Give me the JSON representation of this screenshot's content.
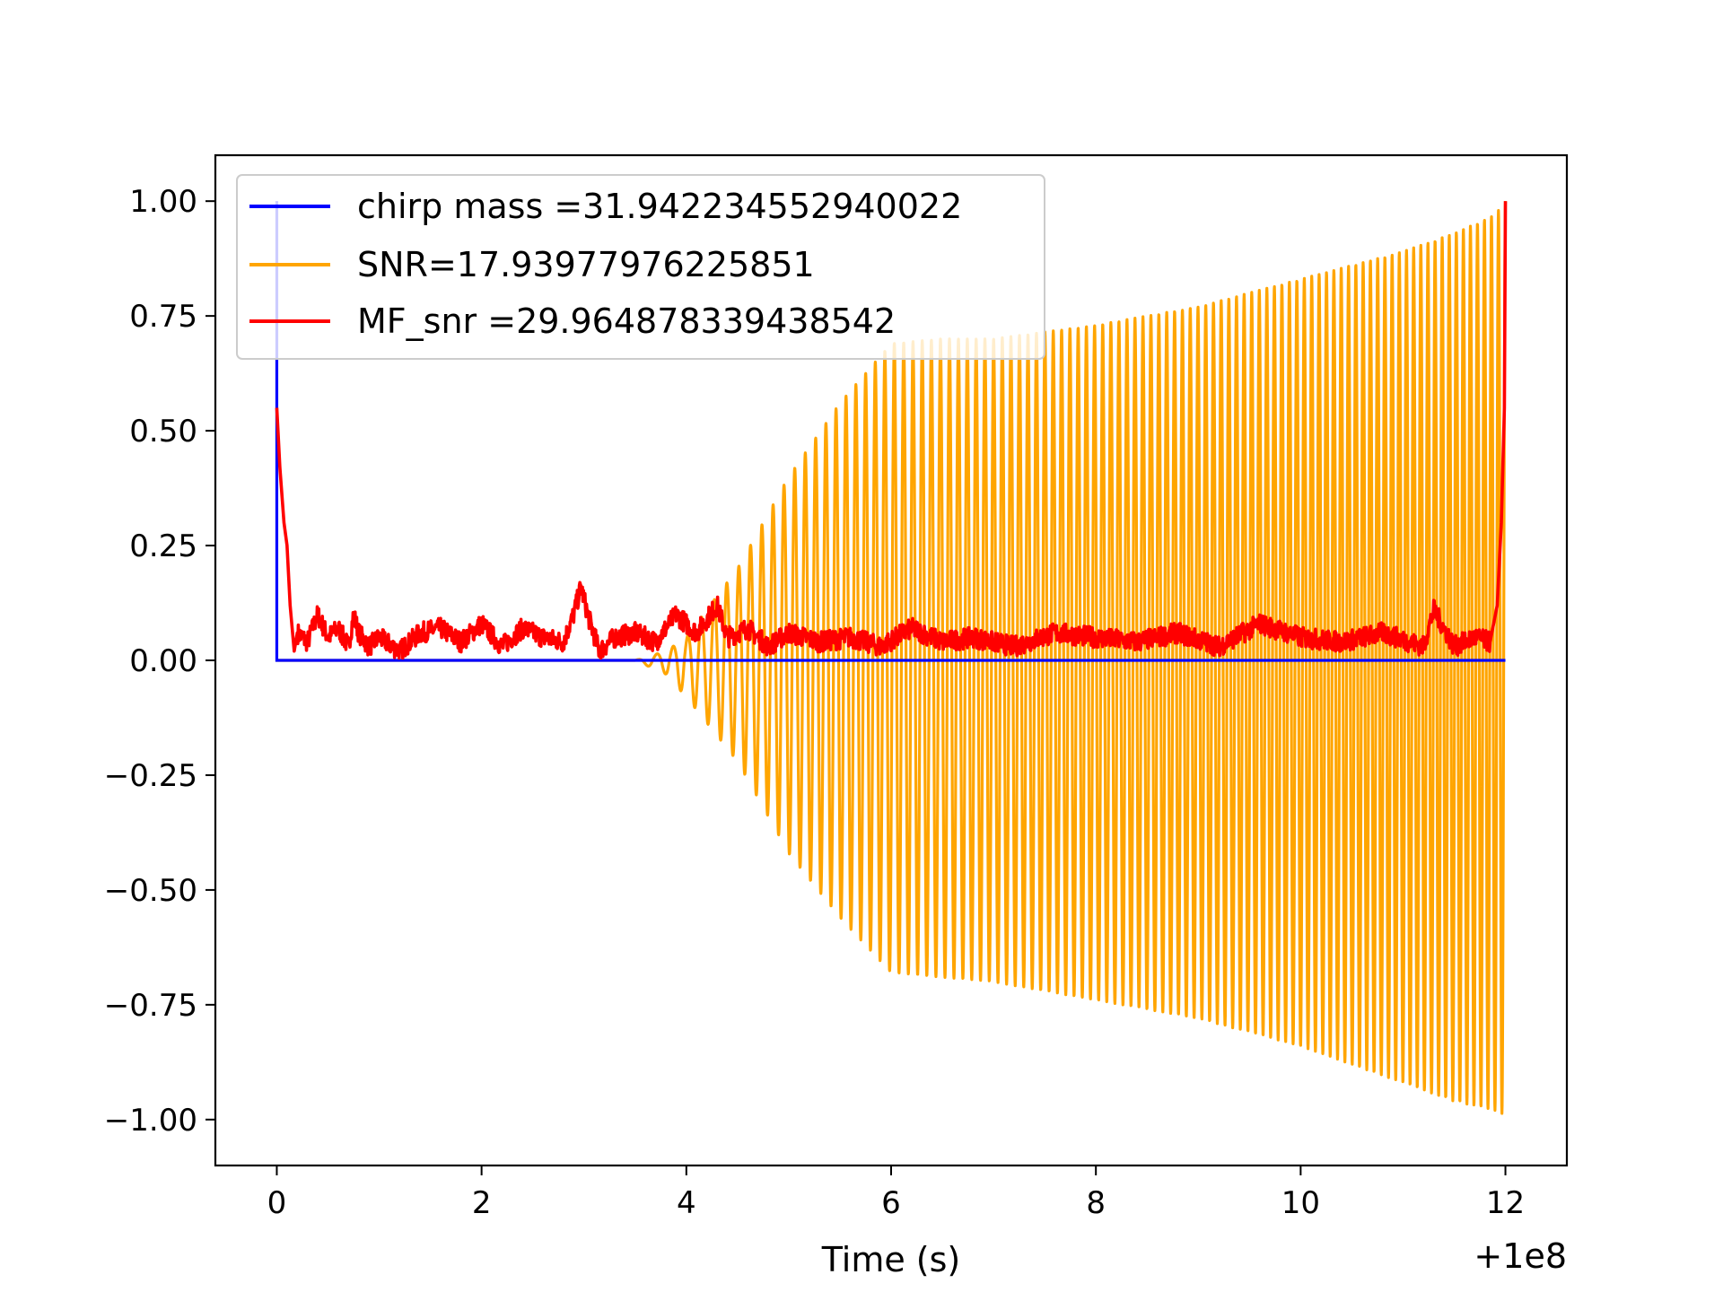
{
  "chart_data": {
    "type": "line",
    "title": "",
    "xlabel": "Time (s)",
    "ylabel": "",
    "x_offset_label": "+1e8",
    "xlim": [
      -0.6,
      12.6
    ],
    "ylim": [
      -1.1,
      1.1
    ],
    "xticks": [
      0,
      2,
      4,
      6,
      8,
      10,
      12
    ],
    "xtick_labels": [
      "0",
      "2",
      "4",
      "6",
      "8",
      "10",
      "12"
    ],
    "yticks": [
      1.0,
      0.75,
      0.5,
      0.25,
      0.0,
      -0.25,
      -0.5,
      -0.75,
      -1.0
    ],
    "ytick_labels": [
      "1.00",
      "0.75",
      "0.50",
      "0.25",
      "0.00",
      "−0.25",
      "−0.50",
      "−0.75",
      "−1.00"
    ],
    "grid": false,
    "legend_position": "top-left",
    "series": [
      {
        "name": "chirp mass =31.942234552940022",
        "color": "#0000ff",
        "x": [
          0.0,
          0.0,
          0.0,
          12.0
        ],
        "y": [
          0.0,
          1.0,
          0.0,
          0.0
        ]
      },
      {
        "name": "SNR=17.93977976225851",
        "color": "#ffa500",
        "x": [
          0.0,
          3.5,
          3.8,
          4.0,
          4.5,
          5.0,
          5.5,
          6.0,
          6.5,
          7.0,
          8.0,
          9.0,
          10.0,
          11.0,
          11.5,
          11.9,
          12.0
        ],
        "envelope_upper": [
          0.0,
          0.0,
          0.02,
          0.05,
          0.2,
          0.4,
          0.56,
          0.69,
          0.7,
          0.7,
          0.73,
          0.77,
          0.83,
          0.89,
          0.93,
          0.97,
          1.0
        ],
        "envelope_lower": [
          0.0,
          0.0,
          -0.03,
          -0.08,
          -0.22,
          -0.42,
          -0.56,
          -0.68,
          -0.69,
          -0.7,
          -0.74,
          -0.78,
          -0.84,
          -0.92,
          -0.96,
          -0.98,
          -0.99
        ],
        "oscillation_cycles": 100
      },
      {
        "name": "MF_snr =29.964878339438542",
        "color": "#ff0000",
        "x": [
          0.0,
          0.03,
          0.07,
          0.1,
          0.13,
          0.17,
          0.2,
          0.3,
          0.4,
          0.5,
          0.6,
          0.7,
          0.75,
          0.8,
          0.9,
          1.0,
          1.2,
          1.4,
          1.6,
          1.8,
          2.0,
          2.2,
          2.4,
          2.6,
          2.8,
          2.9,
          2.97,
          3.05,
          3.15,
          3.3,
          3.5,
          3.7,
          3.9,
          4.1,
          4.3,
          4.4,
          4.6,
          4.8,
          5.0,
          5.3,
          5.6,
          5.9,
          6.2,
          6.5,
          6.8,
          7.2,
          7.6,
          8.0,
          8.4,
          8.8,
          9.2,
          9.6,
          10.0,
          10.4,
          10.8,
          11.2,
          11.3,
          11.5,
          11.7,
          11.85,
          11.92,
          11.96,
          11.99,
          12.0
        ],
        "y": [
          0.55,
          0.42,
          0.3,
          0.25,
          0.12,
          0.02,
          0.06,
          0.04,
          0.1,
          0.05,
          0.07,
          0.03,
          0.1,
          0.06,
          0.03,
          0.05,
          0.02,
          0.06,
          0.07,
          0.04,
          0.08,
          0.03,
          0.07,
          0.05,
          0.04,
          0.1,
          0.16,
          0.09,
          0.02,
          0.05,
          0.06,
          0.04,
          0.1,
          0.06,
          0.12,
          0.05,
          0.07,
          0.03,
          0.06,
          0.04,
          0.05,
          0.03,
          0.07,
          0.04,
          0.05,
          0.03,
          0.06,
          0.05,
          0.04,
          0.06,
          0.03,
          0.08,
          0.05,
          0.04,
          0.06,
          0.03,
          0.11,
          0.03,
          0.05,
          0.04,
          0.12,
          0.3,
          0.55,
          1.0
        ]
      }
    ]
  }
}
